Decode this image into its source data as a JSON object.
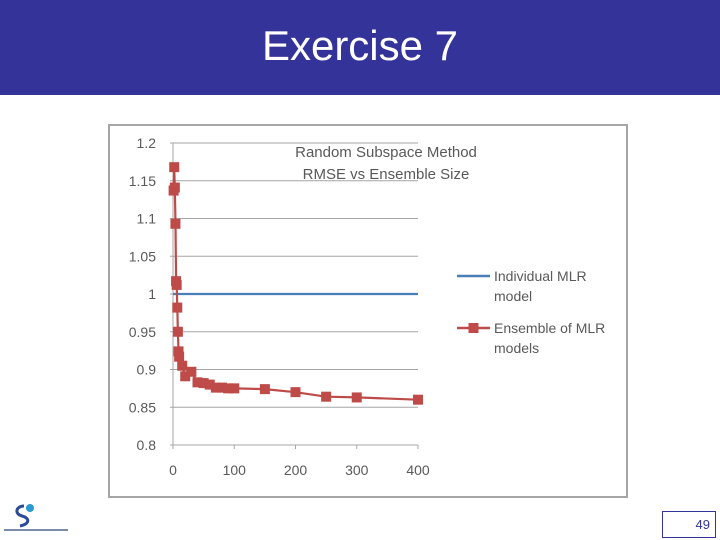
{
  "slide": {
    "title": "Exercise 7",
    "page_number": "49"
  },
  "colors": {
    "header_bg": "#33339a",
    "individual": "#4a7ebb",
    "ensemble": "#be4b48",
    "grid": "#a6a6a6",
    "axis_text": "#595959"
  },
  "chart_data": {
    "type": "line",
    "title": "Random Subspace Method",
    "subtitle": "RMSE vs Ensemble Size",
    "xlabel": "",
    "ylabel": "",
    "xlim": [
      0,
      400
    ],
    "ylim": [
      0.8,
      1.2
    ],
    "x_ticks": [
      "0",
      "100",
      "200",
      "300",
      "400"
    ],
    "y_ticks": [
      "1.2",
      "1.15",
      "1.1",
      "1.05",
      "1",
      "0.95",
      "0.9",
      "0.85",
      "0.8"
    ],
    "grid": true,
    "legend_position": "right",
    "series": [
      {
        "name": "Individual MLR model",
        "legend_lines": [
          "Individual MLR",
          "model"
        ],
        "marker": "none",
        "x": [
          0,
          400
        ],
        "values": [
          1.0,
          1.0
        ]
      },
      {
        "name": "Ensemble of MLR models",
        "legend_lines": [
          "Ensemble of MLR",
          "models"
        ],
        "marker": "square",
        "x": [
          1,
          2,
          3,
          4,
          5,
          6,
          7,
          8,
          9,
          10,
          15,
          20,
          30,
          40,
          50,
          60,
          70,
          80,
          90,
          100,
          150,
          200,
          250,
          300,
          400
        ],
        "values": [
          1.137,
          1.168,
          1.141,
          1.093,
          1.017,
          1.012,
          0.982,
          0.95,
          0.924,
          0.917,
          0.905,
          0.891,
          0.897,
          0.883,
          0.882,
          0.88,
          0.876,
          0.876,
          0.875,
          0.875,
          0.874,
          0.87,
          0.864,
          0.863,
          0.86
        ]
      }
    ]
  }
}
